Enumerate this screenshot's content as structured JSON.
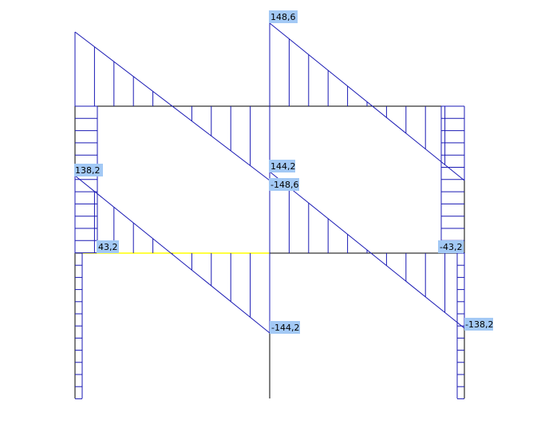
{
  "colors": {
    "background": "#ffffff",
    "frame": "#000000",
    "diagram": "#1a1ab4",
    "highlight_beam": "#ffff00",
    "label_background": "#a3c9f5",
    "label_text": "#000000"
  },
  "labels": {
    "top_beam_middle_left_end": "148,6",
    "top_beam_middle_right_end": "-148,6",
    "bottom_beam_left_start": "138,2",
    "bottom_beam_middle_left_end": "-144,2",
    "bottom_beam_middle_right_start": "144,2",
    "bottom_beam_right_end": "-138,2",
    "left_column_value": "43,2",
    "right_column_value": "-43,2"
  }
}
